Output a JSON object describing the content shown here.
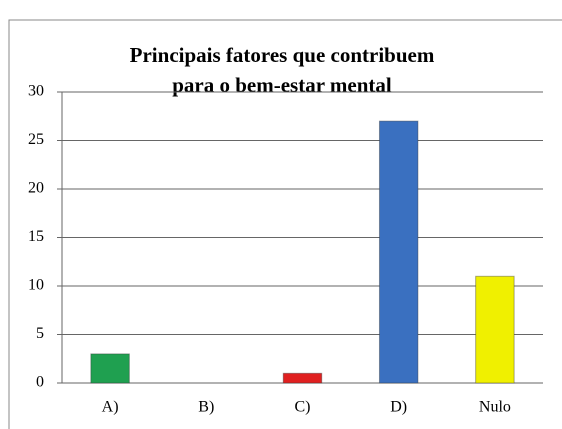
{
  "chart_data": {
    "type": "bar",
    "title": [
      "Principais fatores que contribuem",
      "para o bem-estar mental"
    ],
    "categories": [
      "A)",
      "B)",
      "C)",
      "D)",
      "Nulo"
    ],
    "values": [
      3,
      0,
      1,
      27,
      11
    ],
    "colors": [
      "#1fa050",
      "#7f5fa0",
      "#e02020",
      "#3a70c0",
      "#f0f000"
    ],
    "ylim": [
      0,
      30
    ],
    "yticks": [
      0,
      5,
      10,
      15,
      20,
      25,
      30
    ],
    "grid": true
  }
}
